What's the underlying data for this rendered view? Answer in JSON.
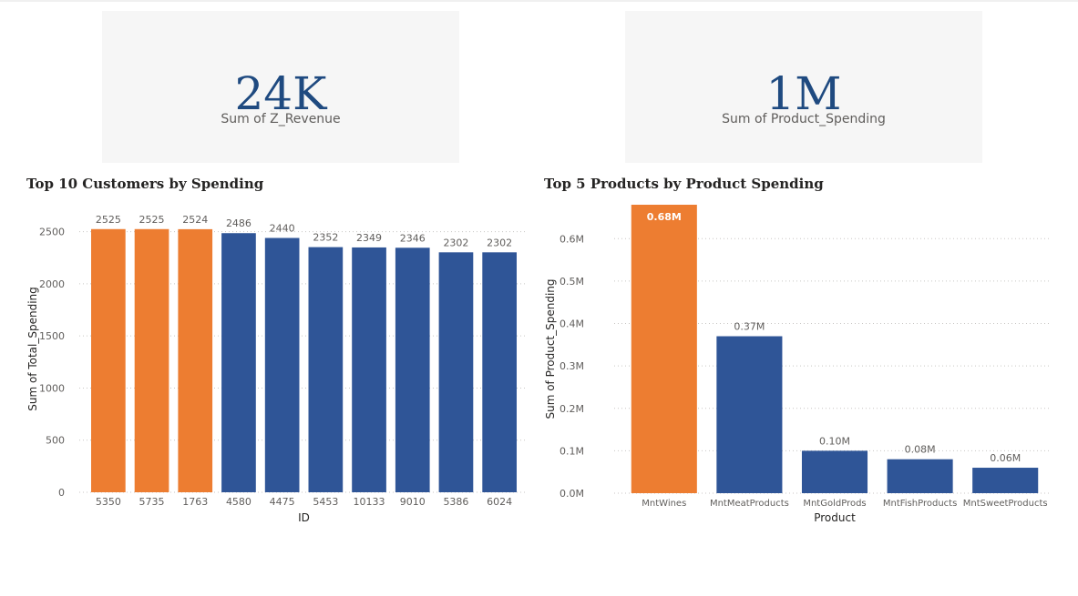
{
  "cards": [
    {
      "value": "24K",
      "label": "Sum of Z_Revenue"
    },
    {
      "value": "1M",
      "label": "Sum of Product_Spending"
    }
  ],
  "colors": {
    "highlight": "#ed7d31",
    "primary": "#2f5597",
    "card_bg": "#f6f6f6",
    "kpi_text": "#1f4a80"
  },
  "chart_data": [
    {
      "type": "bar",
      "title": "Top 10 Customers by Spending",
      "xlabel": "ID",
      "ylabel": "Sum of Total_Spending",
      "categories": [
        "5350",
        "5735",
        "1763",
        "4580",
        "4475",
        "5453",
        "10133",
        "9010",
        "5386",
        "6024"
      ],
      "values": [
        2525,
        2525,
        2524,
        2486,
        2440,
        2352,
        2349,
        2346,
        2302,
        2302
      ],
      "data_labels": [
        "2525",
        "2525",
        "2524",
        "2486",
        "2440",
        "2352",
        "2349",
        "2346",
        "2302",
        "2302"
      ],
      "highlighted": [
        true,
        true,
        true,
        false,
        false,
        false,
        false,
        false,
        false,
        false
      ],
      "ylim": [
        0,
        2750
      ],
      "yticks": [
        0,
        500,
        1000,
        1500,
        2000,
        2500
      ],
      "ytick_labels": [
        "0",
        "500",
        "1000",
        "1500",
        "2000",
        "2500"
      ],
      "grid": true
    },
    {
      "type": "bar",
      "title": "Top 5 Products by Product Spending",
      "xlabel": "Product",
      "ylabel": "Sum of Product_Spending",
      "categories": [
        "MntWines",
        "MntMeatProducts",
        "MntGoldProds",
        "MntFishProducts",
        "MntSweetProducts"
      ],
      "values": [
        0.68,
        0.37,
        0.1,
        0.08,
        0.06
      ],
      "data_labels": [
        "0.68M",
        "0.37M",
        "0.10M",
        "0.08M",
        "0.06M"
      ],
      "highlighted": [
        true,
        false,
        false,
        false,
        false
      ],
      "ylim": [
        0,
        0.68
      ],
      "yticks": [
        0,
        0.1,
        0.2,
        0.3,
        0.4,
        0.5,
        0.6
      ],
      "ytick_labels": [
        "0.0M",
        "0.1M",
        "0.2M",
        "0.3M",
        "0.4M",
        "0.5M",
        "0.6M"
      ],
      "grid": true
    }
  ]
}
